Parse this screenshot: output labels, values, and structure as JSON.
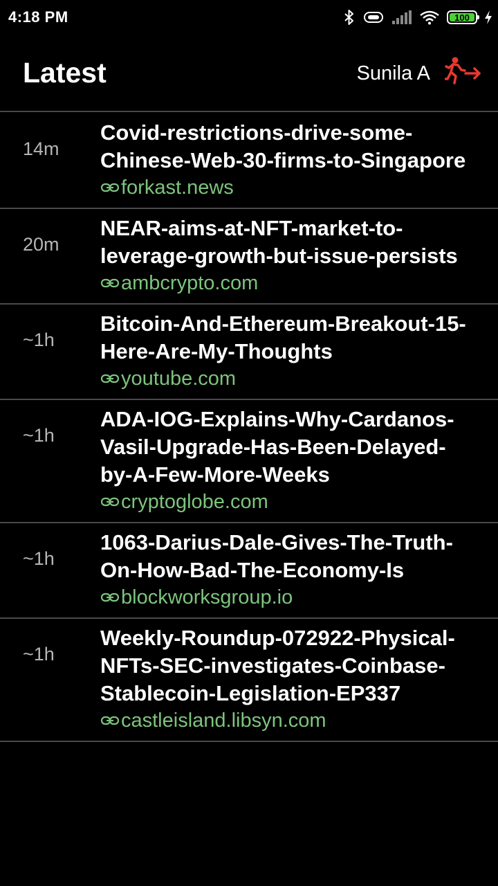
{
  "status_bar": {
    "time": "4:18 PM",
    "battery": "100",
    "battery_level": 1.0,
    "icons": [
      "bluetooth-icon",
      "vibrate-icon",
      "signal-icon",
      "wifi-icon",
      "battery-icon",
      "charging-icon"
    ]
  },
  "header": {
    "title": "Latest",
    "user_name": "Sunila A",
    "logout_icon": "running-exit-icon",
    "accent_color": "#e8392f"
  },
  "colors": {
    "background": "#000000",
    "divider": "#4a4a4a",
    "source_link": "#7cc47c",
    "time_text": "#b5b5b5"
  },
  "news": [
    {
      "time": "14m",
      "title": "Covid-restrictions-drive-some-Chinese-Web-30-firms-to-Singapore",
      "source": "forkast.news"
    },
    {
      "time": "20m",
      "title": "NEAR-aims-at-NFT-market-to-leverage-growth-but-issue-persists",
      "source": "ambcrypto.com"
    },
    {
      "time": "~1h",
      "title": "Bitcoin-And-Ethereum-Breakout-15-Here-Are-My-Thoughts",
      "source": "youtube.com"
    },
    {
      "time": "~1h",
      "title": "ADA-IOG-Explains-Why-Cardanos-Vasil-Upgrade-Has-Been-Delayed-by-A-Few-More-Weeks",
      "source": "cryptoglobe.com"
    },
    {
      "time": "~1h",
      "title": "1063-Darius-Dale-Gives-The-Truth-On-How-Bad-The-Economy-Is",
      "source": "blockworksgroup.io"
    },
    {
      "time": "~1h",
      "title": "Weekly-Roundup-072922-Physical-NFTs-SEC-investigates-Coinbase-Stablecoin-Legislation-EP337",
      "source": "castleisland.libsyn.com"
    }
  ]
}
